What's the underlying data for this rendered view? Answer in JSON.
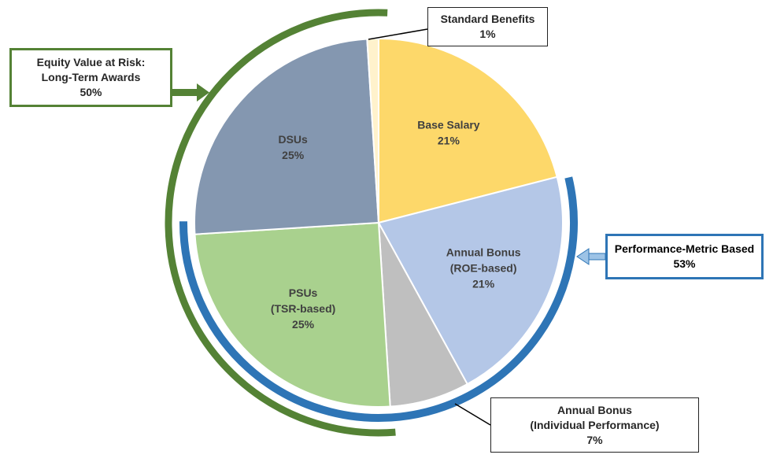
{
  "chart_data": {
    "type": "pie",
    "slices": [
      {
        "label_lines": [
          "Base Salary"
        ],
        "pct_label": "21%",
        "value": 21,
        "color": "#fdd86a"
      },
      {
        "label_lines": [
          "Annual Bonus",
          "(ROE-based)"
        ],
        "pct_label": "21%",
        "value": 21,
        "color": "#b4c7e7"
      },
      {
        "label_lines": [
          "Annual Bonus",
          "(Individual Performance)"
        ],
        "pct_label": "7%",
        "value": 7,
        "color": "#bfbfbf"
      },
      {
        "label_lines": [
          "PSUs",
          "(TSR-based)"
        ],
        "pct_label": "25%",
        "value": 25,
        "color": "#a9d18e"
      },
      {
        "label_lines": [
          "DSUs"
        ],
        "pct_label": "25%",
        "value": 25,
        "color": "#8497b0"
      },
      {
        "label_lines": [
          "Standard Benefits"
        ],
        "pct_label": "1%",
        "value": 1,
        "color": "#fff2cc"
      }
    ],
    "groups": [
      {
        "name_lines": [
          "Equity Value at Risk:",
          "Long-Term Awards"
        ],
        "pct_label": "50%",
        "value": 50,
        "color": "#548235"
      },
      {
        "name_lines": [
          "Performance-Metric Based"
        ],
        "pct_label": "53%",
        "value": 53,
        "color": "#2e75b6"
      }
    ]
  },
  "callouts": {
    "standard_benefits": {
      "line1": "Standard Benefits",
      "line2": "1%"
    },
    "equity": {
      "line1": "Equity Value at Risk:",
      "line2": "Long-Term Awards",
      "line3": "50%"
    },
    "performance": {
      "line1": "Performance-Metric Based",
      "line2": "53%"
    },
    "annual_bonus_individual": {
      "line1": "Annual Bonus",
      "line2": "(Individual Performance)",
      "line3": "7%"
    }
  },
  "colors": {
    "equity_arc": "#548235",
    "performance_arc": "#2e75b6",
    "pie_stroke": "#ffffff"
  }
}
